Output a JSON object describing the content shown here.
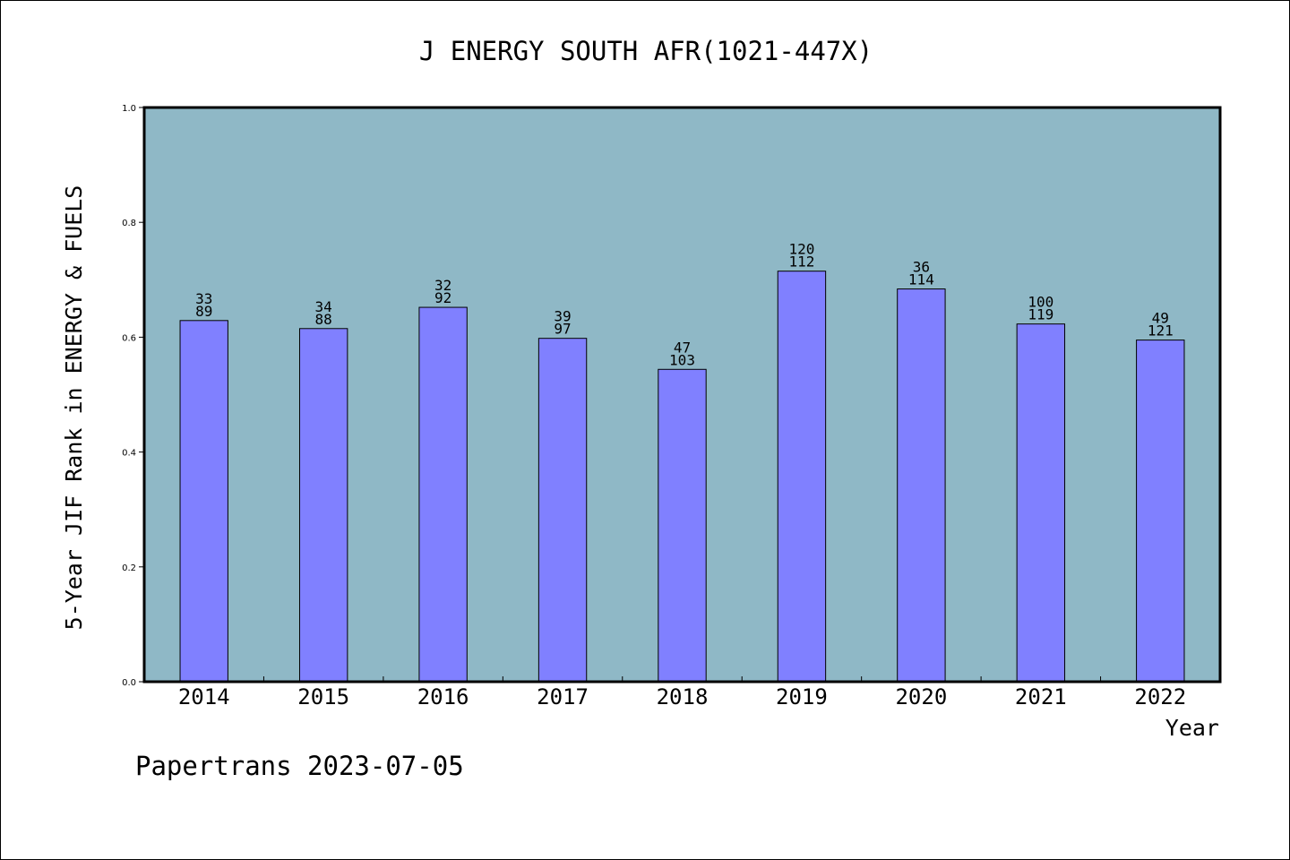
{
  "chart_data": {
    "type": "bar",
    "title": "J ENERGY SOUTH AFR(1021-447X)",
    "xlabel": "Year",
    "ylabel": "5-Year JIF Rank in ENERGY & FUELS",
    "ylim": [
      0,
      1.0
    ],
    "yticks": [
      "0.0",
      "0.2",
      "0.4",
      "0.6",
      "0.8",
      "1.0"
    ],
    "categories": [
      "2014",
      "2015",
      "2016",
      "2017",
      "2018",
      "2019",
      "2020",
      "2021",
      "2022"
    ],
    "values": [
      0.629,
      0.615,
      0.652,
      0.598,
      0.544,
      0.715,
      0.684,
      0.623,
      0.595
    ],
    "labels_top": [
      "33",
      "34",
      "32",
      "39",
      "47",
      "120",
      "36",
      "100",
      "49"
    ],
    "labels_bottom": [
      "89",
      "88",
      "92",
      "97",
      "103",
      "112",
      "114",
      "119",
      "121"
    ],
    "grid": false,
    "legend": "none",
    "colors": {
      "bar": "#8080ff",
      "plot_bg": "#8fb8c6",
      "bar_edge": "#000000"
    }
  },
  "footer": "Papertrans 2023-07-05"
}
